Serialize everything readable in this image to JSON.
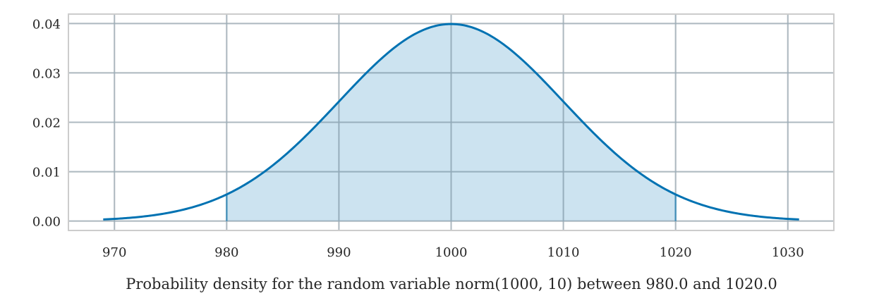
{
  "chart_data": {
    "type": "area",
    "title": "",
    "xlabel": "Probability density for the random variable norm(1000, 10) between 980.0 and 1020.0",
    "ylabel": "",
    "distribution": {
      "mean": 1000,
      "sd": 10
    },
    "curve_range": [
      969,
      1031
    ],
    "shaded_range": [
      980.0,
      1020.0
    ],
    "xlim": [
      965.9,
      1034.1
    ],
    "ylim": [
      -0.0019,
      0.0419
    ],
    "x_ticks": [
      970,
      980,
      990,
      1000,
      1010,
      1020,
      1030
    ],
    "x_tick_labels": [
      "970",
      "980",
      "990",
      "1000",
      "1010",
      "1020",
      "1030"
    ],
    "y_ticks": [
      0,
      0.01,
      0.02,
      0.03,
      0.04
    ],
    "y_tick_labels": [
      "0.00",
      "0.01",
      "0.02",
      "0.03",
      "0.04"
    ],
    "grid": true,
    "colors": {
      "line": "#0072b2",
      "fill": "#0072b2",
      "grid": "#cccccc",
      "spine": "#cccccc"
    }
  }
}
